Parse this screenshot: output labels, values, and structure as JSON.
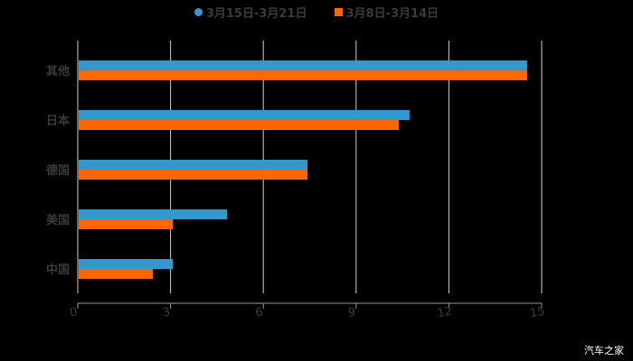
{
  "chart_data": {
    "type": "bar",
    "orientation": "horizontal",
    "title": "",
    "xlabel": "",
    "ylabel": "",
    "categories": [
      "其他",
      "日本",
      "德国",
      "美国",
      "中国"
    ],
    "series": [
      {
        "name": "3月15日-3月21日",
        "color": "#3399CC",
        "values": [
          14.5,
          10.7,
          7.4,
          4.8,
          3.05
        ]
      },
      {
        "name": "3月8日-3月14日",
        "color": "#FF6600",
        "values": [
          14.5,
          10.35,
          7.4,
          3.05,
          2.4
        ]
      }
    ],
    "xlim": [
      0,
      15
    ],
    "xticks": [
      "0",
      "3",
      "6",
      "9",
      "12",
      "15"
    ],
    "grid": true,
    "legend_position": "top"
  },
  "legend": [
    {
      "label": "3月15日-3月21日",
      "color": "#3399CC",
      "shape": "circle"
    },
    {
      "label": "3月8日-3月14日",
      "color": "#FF6600",
      "shape": "square"
    }
  ],
  "watermark": "汽车之家"
}
